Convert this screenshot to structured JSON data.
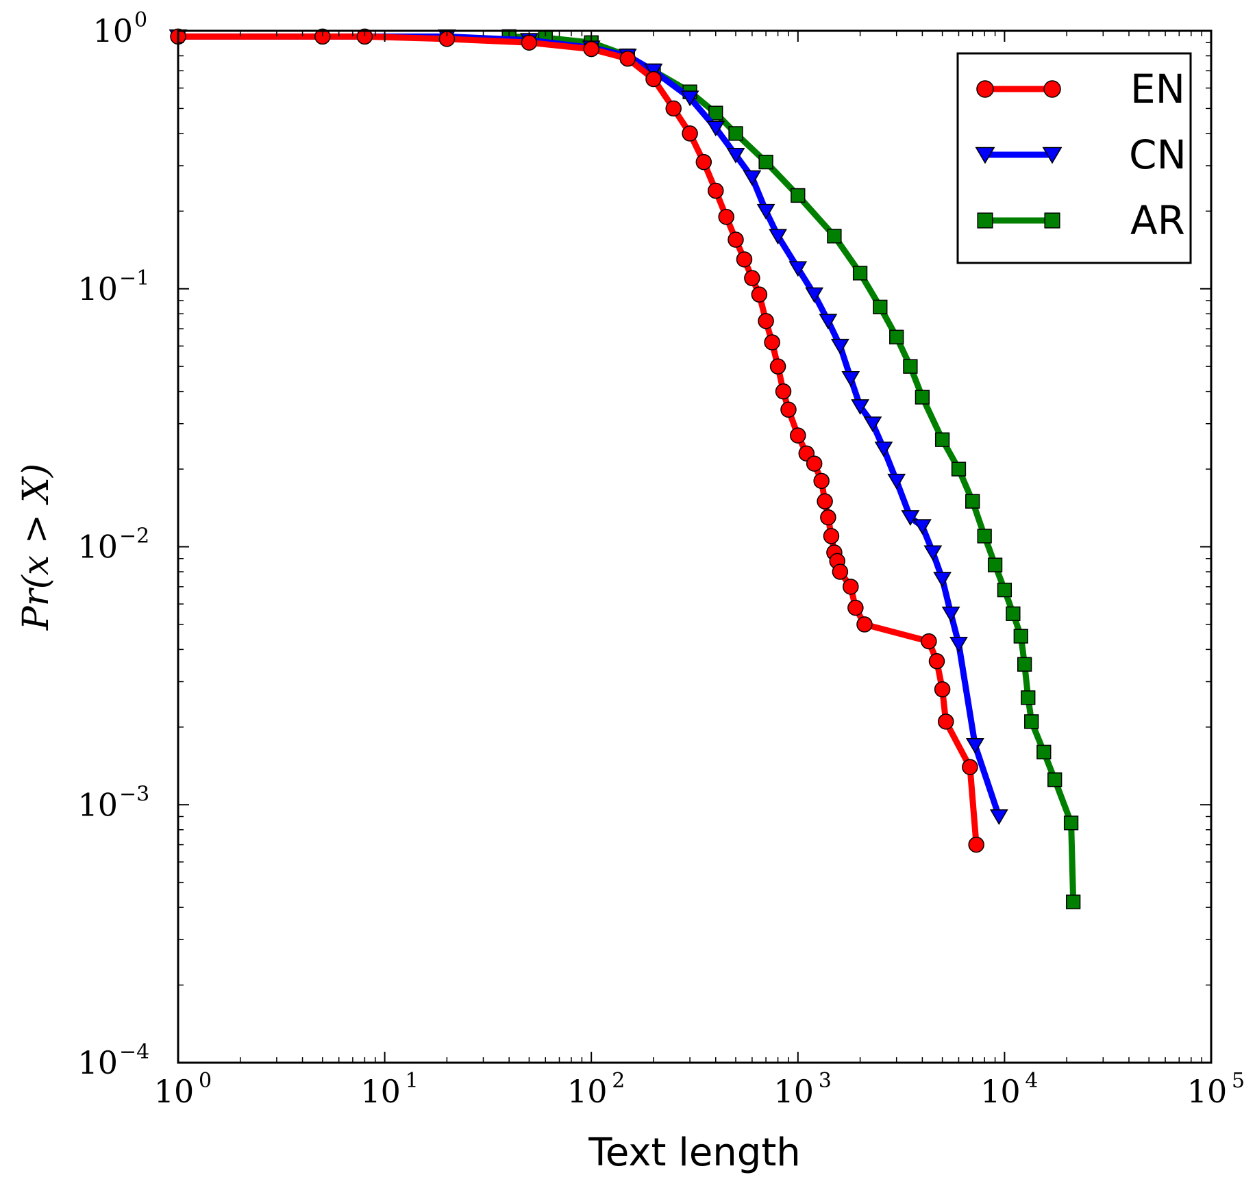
{
  "chart_data": {
    "type": "line",
    "xscale": "log",
    "yscale": "log",
    "xlim": [
      1,
      100000
    ],
    "ylim": [
      0.0001,
      1
    ],
    "xlabel": "Text length",
    "ylabel": "Pr(x > X)",
    "x_ticks": [
      {
        "base": "10",
        "exp": "0",
        "value": 1
      },
      {
        "base": "10",
        "exp": "1",
        "value": 10
      },
      {
        "base": "10",
        "exp": "2",
        "value": 100
      },
      {
        "base": "10",
        "exp": "3",
        "value": 1000
      },
      {
        "base": "10",
        "exp": "4",
        "value": 10000
      },
      {
        "base": "10",
        "exp": "5",
        "value": 100000
      }
    ],
    "y_ticks": [
      {
        "base": "10",
        "exp": "0",
        "value": 1
      },
      {
        "base": "10",
        "exp": "−1",
        "value": 0.1
      },
      {
        "base": "10",
        "exp": "−2",
        "value": 0.01
      },
      {
        "base": "10",
        "exp": "−3",
        "value": 0.001
      },
      {
        "base": "10",
        "exp": "−4",
        "value": 0.0001
      }
    ],
    "legend": {
      "position": "top-right",
      "frame": true
    },
    "grid": false,
    "series": [
      {
        "name": "EN",
        "color": "#ff0000",
        "marker": "circle",
        "x": [
          1,
          5,
          8,
          20,
          50,
          100,
          150,
          200,
          250,
          300,
          350,
          400,
          450,
          500,
          550,
          600,
          650,
          700,
          750,
          800,
          850,
          900,
          1000,
          1100,
          1200,
          1300,
          1350,
          1400,
          1450,
          1500,
          1550,
          1600,
          1800,
          1900,
          2100,
          4300,
          4700,
          5000,
          5200,
          6800,
          7300
        ],
        "y": [
          0.95,
          0.95,
          0.95,
          0.93,
          0.9,
          0.85,
          0.78,
          0.65,
          0.5,
          0.4,
          0.31,
          0.24,
          0.19,
          0.155,
          0.13,
          0.11,
          0.095,
          0.075,
          0.062,
          0.05,
          0.04,
          0.034,
          0.027,
          0.023,
          0.021,
          0.018,
          0.015,
          0.013,
          0.011,
          0.0095,
          0.0088,
          0.008,
          0.007,
          0.0058,
          0.005,
          0.0043,
          0.0036,
          0.0028,
          0.0021,
          0.0014,
          0.0007
        ]
      },
      {
        "name": "CN",
        "color": "#0000ff",
        "marker": "triangle-down",
        "x": [
          1,
          20,
          50,
          100,
          150,
          200,
          300,
          400,
          500,
          600,
          700,
          800,
          1000,
          1200,
          1400,
          1600,
          1800,
          2000,
          2300,
          2600,
          3000,
          3500,
          4000,
          4500,
          5000,
          5500,
          6000,
          7200,
          9400
        ],
        "y": [
          0.95,
          0.95,
          0.92,
          0.86,
          0.8,
          0.7,
          0.55,
          0.42,
          0.33,
          0.27,
          0.2,
          0.16,
          0.12,
          0.095,
          0.075,
          0.06,
          0.045,
          0.035,
          0.03,
          0.024,
          0.018,
          0.013,
          0.012,
          0.0095,
          0.0075,
          0.0055,
          0.0042,
          0.0017,
          0.0009
        ]
      },
      {
        "name": "AR",
        "color": "#007f00",
        "marker": "square",
        "x": [
          40,
          60,
          100,
          150,
          200,
          300,
          400,
          500,
          700,
          1000,
          1500,
          2000,
          2500,
          3000,
          3500,
          4000,
          5000,
          6000,
          7000,
          8000,
          9000,
          10000,
          11000,
          12000,
          12500,
          13000,
          13500,
          15500,
          17500,
          21000,
          21500
        ],
        "y": [
          0.95,
          0.94,
          0.9,
          0.8,
          0.7,
          0.58,
          0.48,
          0.4,
          0.31,
          0.23,
          0.16,
          0.115,
          0.085,
          0.065,
          0.05,
          0.038,
          0.026,
          0.02,
          0.015,
          0.011,
          0.0085,
          0.0068,
          0.0055,
          0.0045,
          0.0035,
          0.0026,
          0.0021,
          0.0016,
          0.00125,
          0.00085,
          0.00042
        ]
      }
    ]
  }
}
